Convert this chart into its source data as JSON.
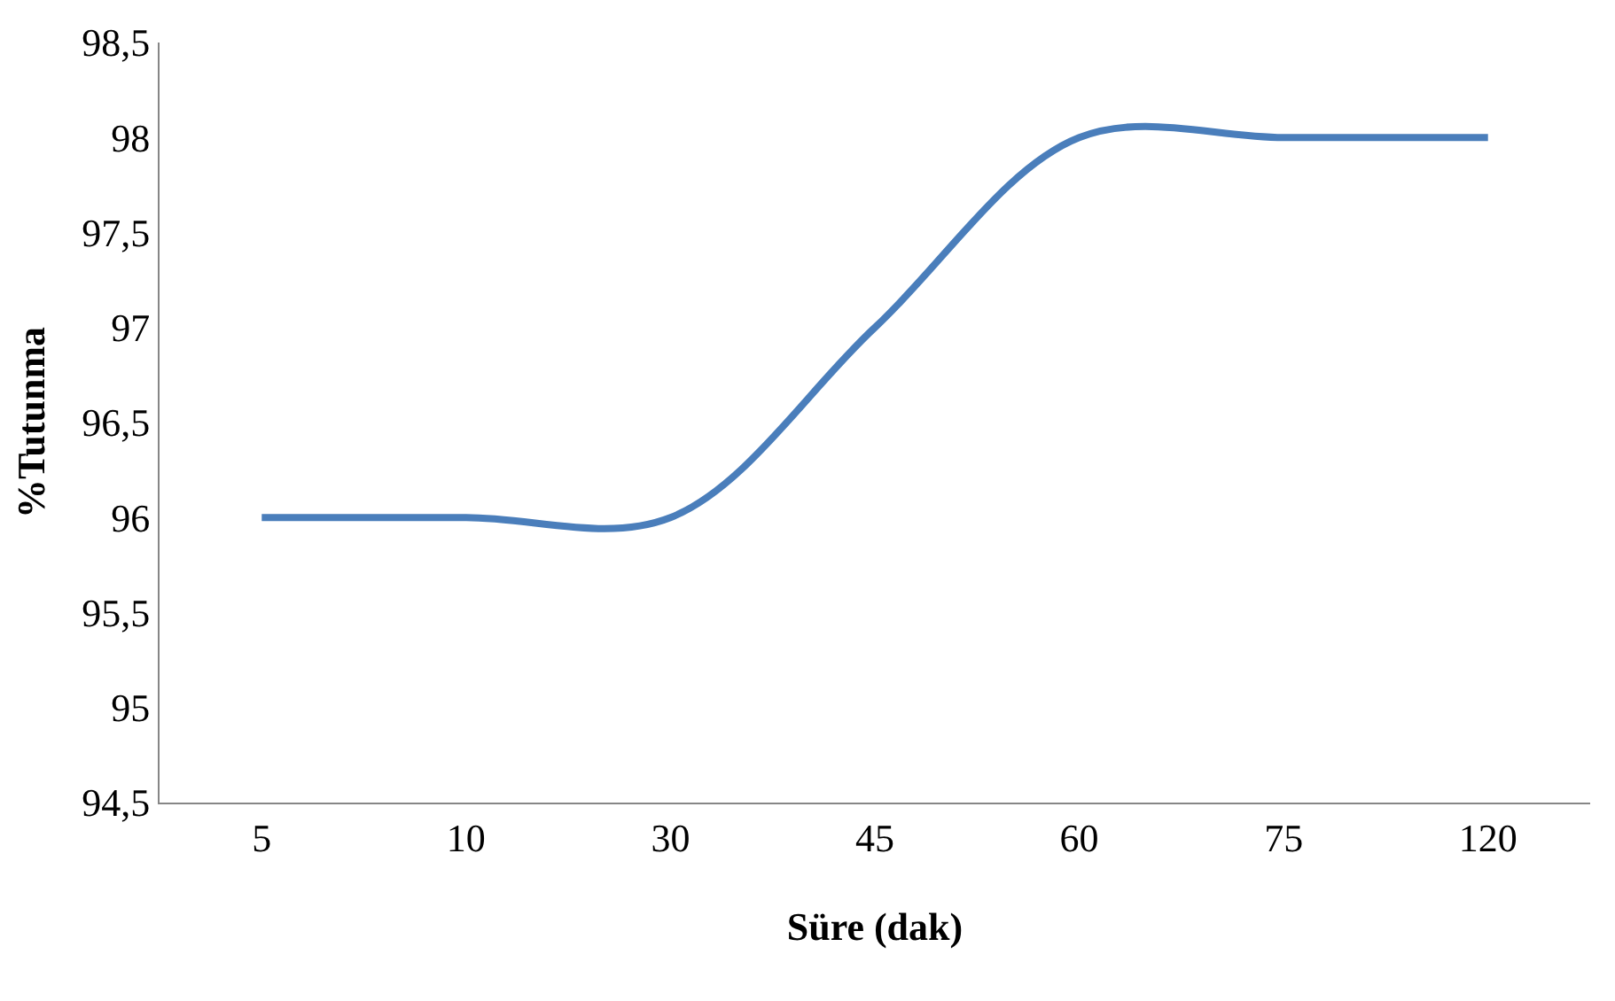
{
  "chart_data": {
    "type": "line",
    "xlabel": "Süre (dak)",
    "ylabel": "%Tutunma",
    "categories": [
      "5",
      "10",
      "30",
      "45",
      "60",
      "75",
      "120"
    ],
    "series": [
      {
        "color": "#4a7ebb",
        "values": [
          96,
          96,
          96,
          97,
          98,
          98,
          98
        ]
      }
    ],
    "ylim": [
      94.5,
      98.5
    ],
    "yticks": [
      {
        "value": 94.5,
        "label": "94,5"
      },
      95,
      {
        "value": 95.5,
        "label": "95,5"
      },
      96,
      {
        "value": 96.5,
        "label": "96,5"
      },
      97,
      {
        "value": 97.5,
        "label": "97,5"
      },
      98,
      {
        "value": 98.5,
        "label": "98,5"
      }
    ],
    "grid": false,
    "line_style": "solid"
  }
}
